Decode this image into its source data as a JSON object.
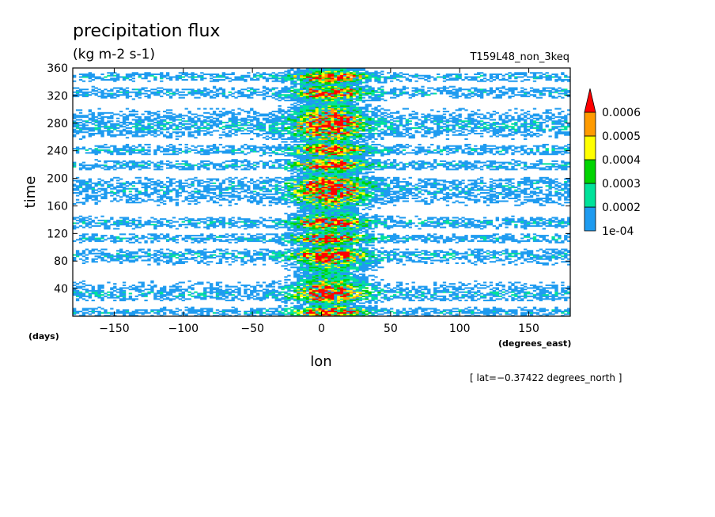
{
  "chart_data": {
    "type": "heatmap",
    "title": "precipitation flux",
    "units": "(kg m-2 s-1)",
    "run_label": "T159L48_non_3keq",
    "xlabel": "lon",
    "xunit": "(degrees_east)",
    "ylabel": "time",
    "yunit": "(days)",
    "xlim": [
      -180,
      180
    ],
    "ylim": [
      0,
      360
    ],
    "xticks": [
      -150,
      -100,
      -50,
      0,
      50,
      100,
      150
    ],
    "xtick_labels": [
      "−150",
      "−100",
      "−50",
      "0",
      "50",
      "100",
      "150"
    ],
    "yticks": [
      40,
      80,
      120,
      160,
      200,
      240,
      280,
      320,
      360
    ],
    "ytick_labels": [
      "40",
      "80",
      "120",
      "160",
      "200",
      "240",
      "280",
      "320",
      "360"
    ],
    "colorbar": {
      "levels": [
        0.0001,
        0.0002,
        0.0003,
        0.0004,
        0.0005,
        0.0006
      ],
      "labels": [
        "1e-04",
        "0.0002",
        "0.0003",
        "0.0004",
        "0.0005",
        "0.0006"
      ],
      "colors": [
        "#1e9bf0",
        "#00e29a",
        "#00d400",
        "#ffff00",
        "#ff9b00",
        "#ff0000"
      ],
      "extend": "max"
    },
    "annotation": "[ lat=−0.37422 degrees_north ]",
    "pattern": {
      "enhanced_band_center_lon": 5,
      "enhanced_band_halfwidth_lon": 22,
      "sparse_background": true
    }
  }
}
